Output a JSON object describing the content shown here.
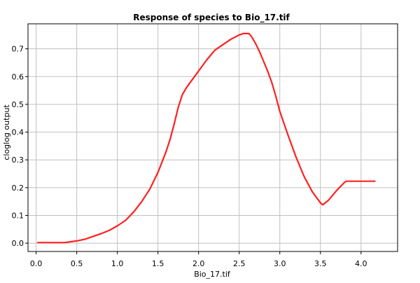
{
  "chart_data": {
    "type": "line",
    "title": "Response of species to Bio_17.tif",
    "xlabel": "Bio_17.tif",
    "ylabel": "cloglog output",
    "xlim": [
      -0.1,
      4.45
    ],
    "ylim": [
      -0.03,
      0.79
    ],
    "grid": true,
    "x_ticks": [
      "0.0",
      "0.5",
      "1.0",
      "1.5",
      "2.0",
      "2.5",
      "3.0",
      "3.5",
      "4.0"
    ],
    "y_ticks": [
      "0.0",
      "0.1",
      "0.2",
      "0.3",
      "0.4",
      "0.5",
      "0.6",
      "0.7"
    ],
    "series": [
      {
        "color": "#ff2020",
        "x": [
          0.02,
          0.2,
          0.35,
          0.5,
          0.6,
          0.7,
          0.8,
          0.9,
          1.0,
          1.1,
          1.2,
          1.3,
          1.4,
          1.5,
          1.6,
          1.65,
          1.7,
          1.75,
          1.8,
          1.85,
          1.9,
          2.0,
          2.1,
          2.2,
          2.3,
          2.4,
          2.5,
          2.55,
          2.62,
          2.65,
          2.7,
          2.75,
          2.8,
          2.85,
          2.9,
          2.95,
          3.0,
          3.1,
          3.2,
          3.3,
          3.4,
          3.5,
          3.53,
          3.6,
          3.7,
          3.8,
          3.82,
          3.9,
          4.0,
          4.1,
          4.17
        ],
        "y": [
          0.002,
          0.002,
          0.002,
          0.008,
          0.014,
          0.024,
          0.034,
          0.046,
          0.062,
          0.082,
          0.112,
          0.15,
          0.195,
          0.255,
          0.33,
          0.375,
          0.43,
          0.49,
          0.535,
          0.56,
          0.58,
          0.62,
          0.66,
          0.695,
          0.715,
          0.735,
          0.75,
          0.755,
          0.755,
          0.745,
          0.72,
          0.69,
          0.655,
          0.62,
          0.58,
          0.53,
          0.475,
          0.39,
          0.31,
          0.24,
          0.185,
          0.145,
          0.138,
          0.155,
          0.19,
          0.22,
          0.223,
          0.223,
          0.223,
          0.223,
          0.223
        ]
      }
    ]
  }
}
